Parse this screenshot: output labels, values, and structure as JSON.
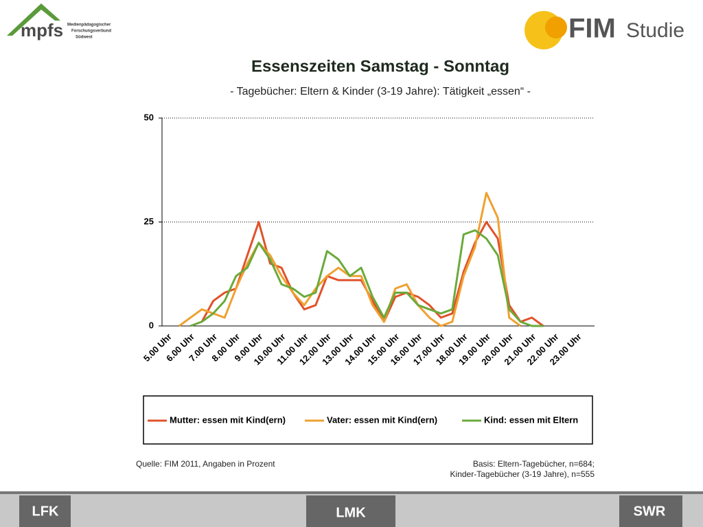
{
  "header": {
    "left_logo": "mpfs",
    "left_logo_sub": [
      "Medienpädagogischer",
      "Forschungsverbund",
      "Südwest"
    ],
    "right_logo_main": "FIM",
    "right_logo_sub": "Studie"
  },
  "chart_data": {
    "type": "line",
    "title": "Essenszeiten Samstag - Sonntag",
    "subtitle": "- Tagebücher: Eltern & Kinder (3-19 Jahre): Tätigkeit „essen“ -",
    "categories": [
      "5.00 Uhr",
      null,
      "6.00 Uhr",
      null,
      "7.00 Uhr",
      null,
      "8.00 Uhr",
      null,
      "9.00 Uhr",
      null,
      "10.00 Uhr",
      null,
      "11.00 Uhr",
      null,
      "12.00 Uhr",
      null,
      "13.00 Uhr",
      null,
      "14.00 Uhr",
      null,
      "15.00 Uhr",
      null,
      "16.00 Uhr",
      null,
      "17.00 Uhr",
      null,
      "18.00 Uhr",
      null,
      "19.00 Uhr",
      null,
      "20.00 Uhr",
      null,
      "21.00 Uhr",
      null,
      "22.00 Uhr",
      null,
      "23.00 Uhr",
      null
    ],
    "series": [
      {
        "name": "Mutter: essen mit Kind(ern)",
        "color": "#e0522a",
        "values": [
          null,
          null,
          null,
          1,
          6,
          8,
          9,
          17,
          25,
          15,
          14,
          8,
          4,
          5,
          12,
          11,
          11,
          11,
          6,
          1,
          7,
          8,
          7,
          5,
          2,
          3,
          13,
          20,
          25,
          21,
          5,
          1,
          2,
          0,
          null,
          null,
          null,
          null
        ]
      },
      {
        "name": "Vater: essen mit Kind(ern)",
        "color": "#f0a030",
        "values": [
          null,
          0,
          2,
          4,
          3,
          2,
          9,
          15,
          20,
          17,
          12,
          8,
          5,
          9,
          12,
          14,
          12,
          12,
          5,
          1,
          9,
          10,
          5,
          2,
          0,
          1,
          12,
          19,
          32,
          26,
          2,
          0,
          null,
          null,
          null,
          null,
          null,
          null
        ]
      },
      {
        "name": "Kind: essen mit Eltern",
        "color": "#6aaa3a",
        "values": [
          null,
          null,
          0,
          1,
          3,
          6,
          12,
          14,
          20,
          16,
          10,
          9,
          7,
          8,
          18,
          16,
          12,
          14,
          7,
          2,
          8,
          8,
          5,
          4,
          3,
          4,
          22,
          23,
          21,
          17,
          4,
          1,
          0,
          0,
          null,
          null,
          null,
          null
        ]
      }
    ],
    "ylim": [
      0,
      50
    ],
    "yticks": [
      0,
      25,
      50
    ],
    "grid": true,
    "legend": "bottom"
  },
  "notes": {
    "source": "Quelle: FIM 2011, Angaben in Prozent",
    "basis": [
      "Basis: Eltern-Tagebücher, n=684;",
      "Kinder-Tagebücher (3-19 Jahre), n=555"
    ]
  },
  "footer": {
    "logos": [
      "LFK",
      "LMK",
      "SWR"
    ]
  }
}
